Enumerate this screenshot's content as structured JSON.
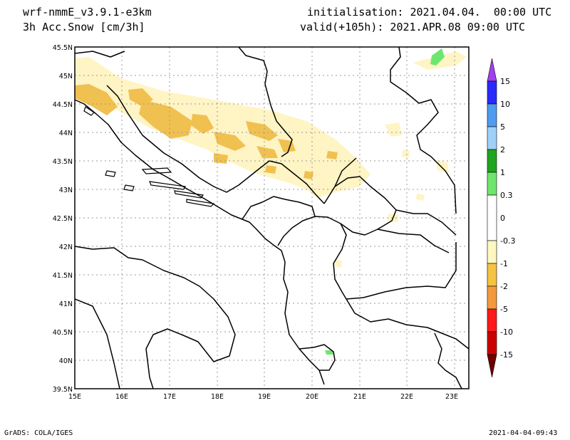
{
  "header": {
    "model": "wrf-nmmE_v3.9.1-e3km",
    "variable": "3h Acc.Snow [cm/3h]",
    "initialisation": "initialisation: 2021.04.04.  00:00 UTC",
    "valid": "valid(+105h): 2021.APR.08 09:00 UTC"
  },
  "footer": {
    "credit": "GrADS: COLA/IGES",
    "timestamp": "2021-04-04-09:43"
  },
  "map": {
    "lat_labels": [
      "45.5N",
      "45N",
      "44.5N",
      "44N",
      "43.5N",
      "43N",
      "42.5N",
      "42N",
      "41.5N",
      "41N",
      "40.5N",
      "40N",
      "39.5N"
    ],
    "lon_labels": [
      "15E",
      "16E",
      "17E",
      "18E",
      "19E",
      "20E",
      "21E",
      "22E",
      "23E"
    ],
    "lat_range": [
      39.5,
      45.5
    ],
    "lon_range": [
      15.0,
      23.3
    ],
    "grid": true
  },
  "colorbar": {
    "labels": [
      "15",
      "10",
      "5",
      "2",
      "1",
      "0.3",
      "0",
      "-0.3",
      "-1",
      "-2",
      "-5",
      "-10",
      "-15"
    ],
    "colors": [
      "#2a2aff",
      "#4f9bf0",
      "#9fd0f8",
      "#1fa51f",
      "#6ee66e",
      "#ffffff",
      "#ffffff",
      "#fff7c0",
      "#f5c242",
      "#f59a3c",
      "#ff1a1a",
      "#cc0000",
      "#8b0000"
    ],
    "top_tip_color": "#a040f0",
    "bottom_tip_color": "#700000"
  },
  "colors": {
    "light_snow": "#fff4c4",
    "moderate_snow": "#f0c050",
    "green_snow": "#6ee66e"
  }
}
